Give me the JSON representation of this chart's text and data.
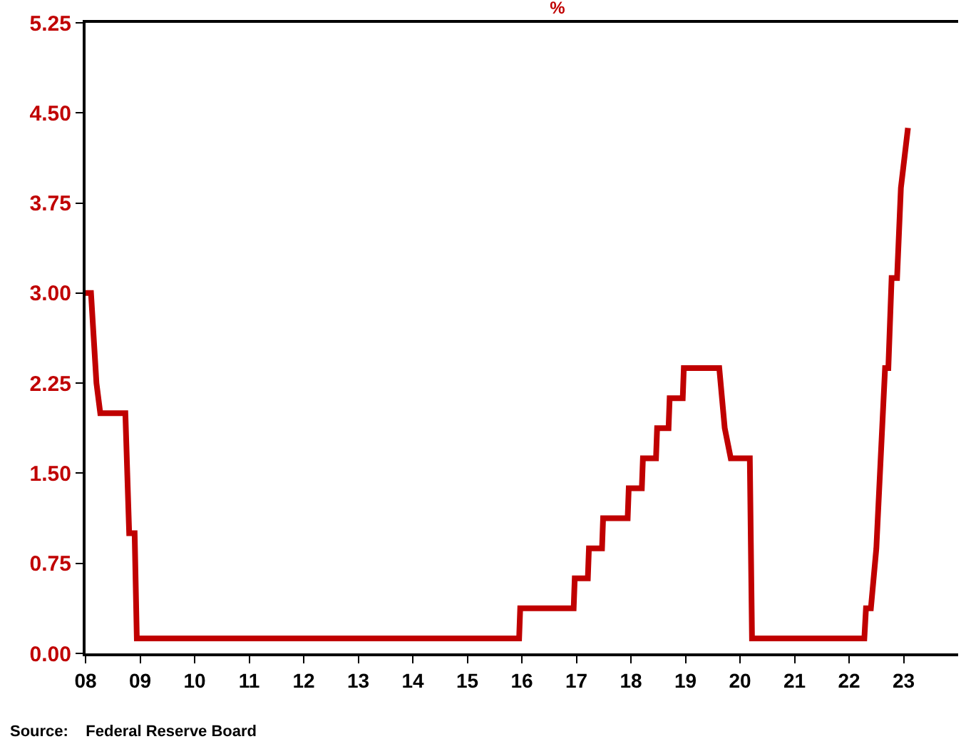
{
  "chart_data": {
    "type": "line",
    "title": "%",
    "annotations": [
      "Source:    Federal Reserve Board"
    ],
    "x": [
      2008.0,
      2008.1,
      2008.2,
      2008.27,
      2008.73,
      2008.8,
      2008.9,
      2008.94,
      2015.95,
      2015.97,
      2016.95,
      2016.97,
      2017.21,
      2017.23,
      2017.47,
      2017.49,
      2017.94,
      2017.96,
      2018.2,
      2018.22,
      2018.46,
      2018.48,
      2018.69,
      2018.71,
      2018.95,
      2018.97,
      2019.5,
      2019.62,
      2019.72,
      2019.83,
      2020.18,
      2020.22,
      2022.28,
      2022.31,
      2022.4,
      2022.5,
      2022.58,
      2022.66,
      2022.72,
      2022.78,
      2022.88,
      2022.95,
      2023.08
    ],
    "series": [
      {
        "color": "#c00000",
        "values": [
          3.0,
          3.0,
          2.25,
          2.0,
          2.0,
          1.0,
          1.0,
          0.125,
          0.125,
          0.375,
          0.375,
          0.625,
          0.625,
          0.875,
          0.875,
          1.125,
          1.125,
          1.375,
          1.375,
          1.625,
          1.625,
          1.875,
          1.875,
          2.125,
          2.125,
          2.375,
          2.375,
          2.375,
          1.875,
          1.625,
          1.625,
          0.125,
          0.125,
          0.375,
          0.375,
          0.875,
          1.625,
          2.375,
          2.375,
          3.125,
          3.125,
          3.875,
          4.375
        ]
      }
    ],
    "xlim": [
      2008,
      2024
    ],
    "xticks": [
      {
        "value": 2008,
        "label": "08"
      },
      {
        "value": 2009,
        "label": "09"
      },
      {
        "value": 2010,
        "label": "10"
      },
      {
        "value": 2011,
        "label": "11"
      },
      {
        "value": 2012,
        "label": "12"
      },
      {
        "value": 2013,
        "label": "13"
      },
      {
        "value": 2014,
        "label": "14"
      },
      {
        "value": 2015,
        "label": "15"
      },
      {
        "value": 2016,
        "label": "16"
      },
      {
        "value": 2017,
        "label": "17"
      },
      {
        "value": 2018,
        "label": "18"
      },
      {
        "value": 2019,
        "label": "19"
      },
      {
        "value": 2020,
        "label": "20"
      },
      {
        "value": 2021,
        "label": "21"
      },
      {
        "value": 2022,
        "label": "22"
      },
      {
        "value": 2023,
        "label": "23"
      }
    ],
    "ylim": [
      0,
      5.25
    ],
    "yticks": [
      {
        "value": 0,
        "label": "0.00"
      },
      {
        "value": 0.75,
        "label": "0.75"
      },
      {
        "value": 1.5,
        "label": "1.50"
      },
      {
        "value": 2.25,
        "label": "2.25"
      },
      {
        "value": 3,
        "label": "3.00"
      },
      {
        "value": 3.75,
        "label": "3.75"
      },
      {
        "value": 4.5,
        "label": "4.50"
      },
      {
        "value": 5.25,
        "label": "5.25"
      }
    ],
    "grid": false,
    "marker": "none",
    "line_style": "solid"
  }
}
